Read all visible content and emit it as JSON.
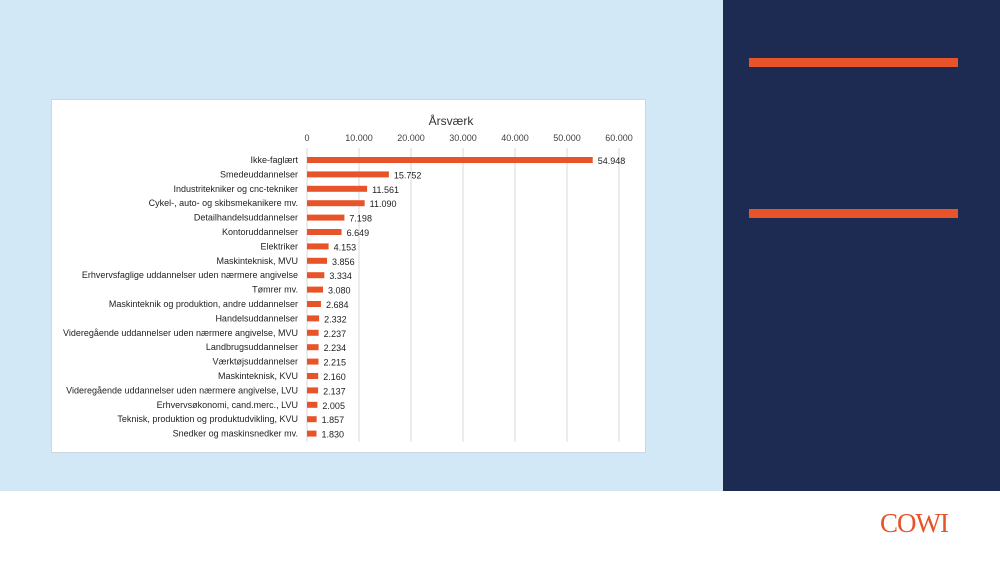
{
  "brand": {
    "logo_text": "COWI",
    "accent_color": "#e8542a",
    "navy_color": "#1d2b53",
    "light_bg_color": "#d3e8f6"
  },
  "chart_data": {
    "type": "bar",
    "orientation": "horizontal",
    "title": "Årsværk",
    "xlabel": "",
    "ylabel": "",
    "xlim": [
      0,
      60000
    ],
    "x_ticks": [
      0,
      10000,
      20000,
      30000,
      40000,
      50000,
      60000
    ],
    "x_tick_labels": [
      "0",
      "10.000",
      "20.000",
      "30.000",
      "40.000",
      "50.000",
      "60.000"
    ],
    "grid": true,
    "legend": "none",
    "bar_color": "#e8542a",
    "categories": [
      "Ikke-faglært",
      "Smedeuddannelser",
      "Industritekniker og cnc-tekniker",
      "Cykel-, auto- og skibsmekanikere mv.",
      "Detailhandelsuddannelser",
      "Kontoruddannelser",
      "Elektriker",
      "Maskinteknisk, MVU",
      "Erhvervsfaglige uddannelser uden nærmere angivelse",
      "Tømrer mv.",
      "Maskinteknik og produktion, andre uddannelser",
      "Handelsuddannelser",
      "Videregående uddannelser uden nærmere angivelse, MVU",
      "Landbrugsuddannelser",
      "Værktøjsuddannelser",
      "Maskinteknisk, KVU",
      "Videregående uddannelser uden nærmere angivelse, LVU",
      "Erhvervsøkonomi, cand.merc., LVU",
      "Teknisk, produktion og produktudvikling, KVU",
      "Snedker og maskinsnedker mv."
    ],
    "values": [
      54948,
      15752,
      11561,
      11090,
      7198,
      6649,
      4153,
      3856,
      3334,
      3080,
      2684,
      2332,
      2237,
      2234,
      2215,
      2160,
      2137,
      2005,
      1857,
      1830
    ],
    "value_labels": [
      "54.948",
      "15.752",
      "11.561",
      "11.090",
      "7.198",
      "6.649",
      "4.153",
      "3.856",
      "3.334",
      "3.080",
      "2.684",
      "2.332",
      "2.237",
      "2.234",
      "2.215",
      "2.160",
      "2.137",
      "2.005",
      "1.857",
      "1.830"
    ]
  }
}
